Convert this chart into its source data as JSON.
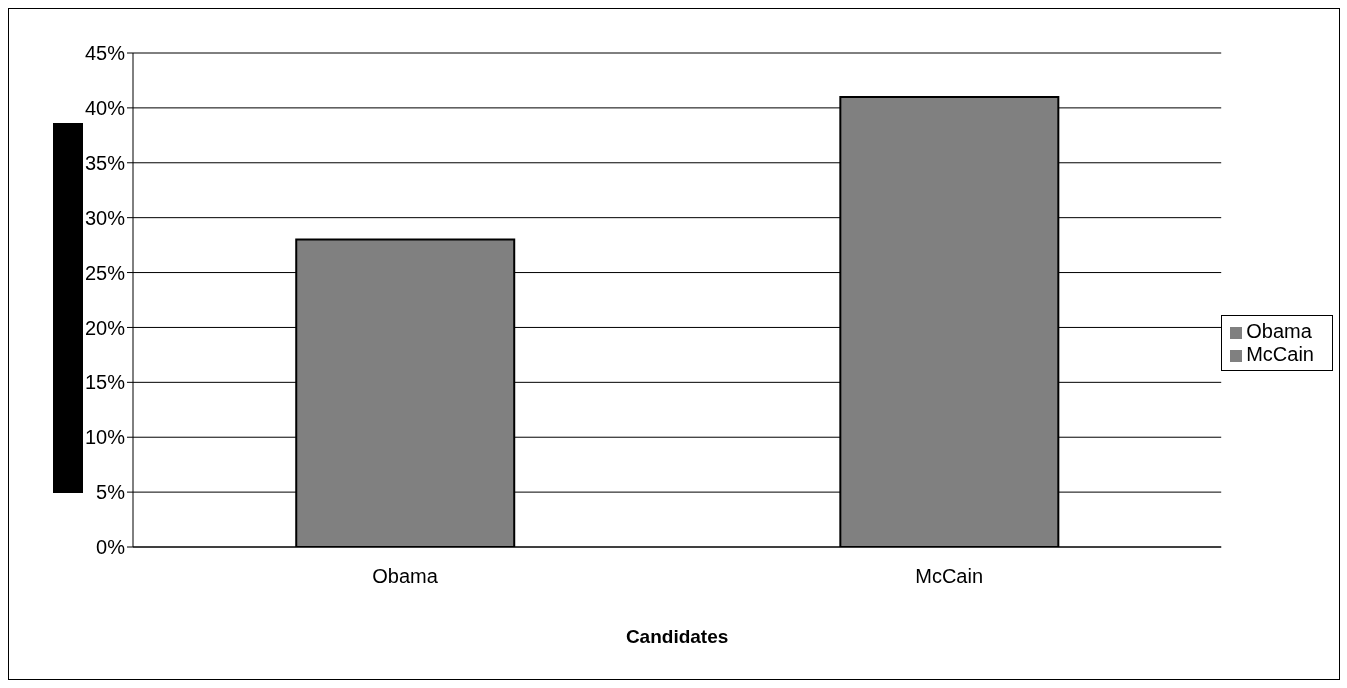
{
  "chart_data": {
    "type": "bar",
    "xlabel": "Candidates",
    "categories": [
      "Obama",
      "McCain"
    ],
    "stacked": true,
    "series": [
      {
        "name": "Obama",
        "color": "#808080",
        "values": [
          28,
          null
        ]
      },
      {
        "name": "McCain",
        "color": "#808080",
        "values": [
          null,
          41
        ]
      }
    ],
    "ylim": [
      0,
      45
    ],
    "yticks": [
      {
        "value": 0,
        "label": "0%"
      },
      {
        "value": 5,
        "label": "5%"
      },
      {
        "value": 10,
        "label": "10%"
      },
      {
        "value": 15,
        "label": "15%"
      },
      {
        "value": 20,
        "label": "20%"
      },
      {
        "value": 25,
        "label": "25%"
      },
      {
        "value": 30,
        "label": "30%"
      },
      {
        "value": 35,
        "label": "35%"
      },
      {
        "value": 40,
        "label": "40%"
      },
      {
        "value": 45,
        "label": "45%"
      }
    ],
    "grid": "y",
    "legend": "right"
  }
}
